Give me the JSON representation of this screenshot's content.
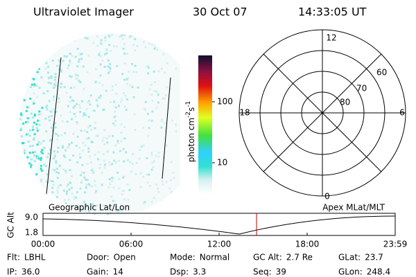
{
  "header": {
    "title": "Ultraviolet Imager",
    "date": "30 Oct 07",
    "time": "14:33:05 UT"
  },
  "colorbar": {
    "label": [
      "photon cm",
      "-2",
      "s",
      "-1"
    ],
    "ticks": [
      "100",
      "10"
    ]
  },
  "polar": {
    "mlt": {
      "top": "12",
      "right": "6",
      "bottom": "0",
      "left": "18"
    },
    "rings": [
      "60",
      "70",
      "80"
    ]
  },
  "panel": {
    "left_label": "Geographic Lat/Lon",
    "right_label": "Apex MLat/MLT",
    "ylabel": "GC Alt",
    "yticks": [
      "9.0",
      "1.8"
    ],
    "xticks": [
      "00:00",
      "06:00",
      "12:00",
      "18:00",
      "23:59"
    ]
  },
  "footer": {
    "rows": [
      [
        {
          "key": "Flt:",
          "value": "LBHL"
        },
        {
          "key": "Door:",
          "value": "Open"
        },
        {
          "key": "Mode:",
          "value": "Normal"
        },
        {
          "key": "GC Alt:",
          "value": "2.7 Re"
        },
        {
          "key": "GLat:",
          "value": "23.7"
        }
      ],
      [
        {
          "key": "IP:",
          "value": "36.0"
        },
        {
          "key": "Gain:",
          "value": "14"
        },
        {
          "key": "Dsp:",
          "value": "3.3"
        },
        {
          "key": "Seq:",
          "value": "39"
        },
        {
          "key": "GLon:",
          "value": "248.4"
        }
      ]
    ]
  }
}
